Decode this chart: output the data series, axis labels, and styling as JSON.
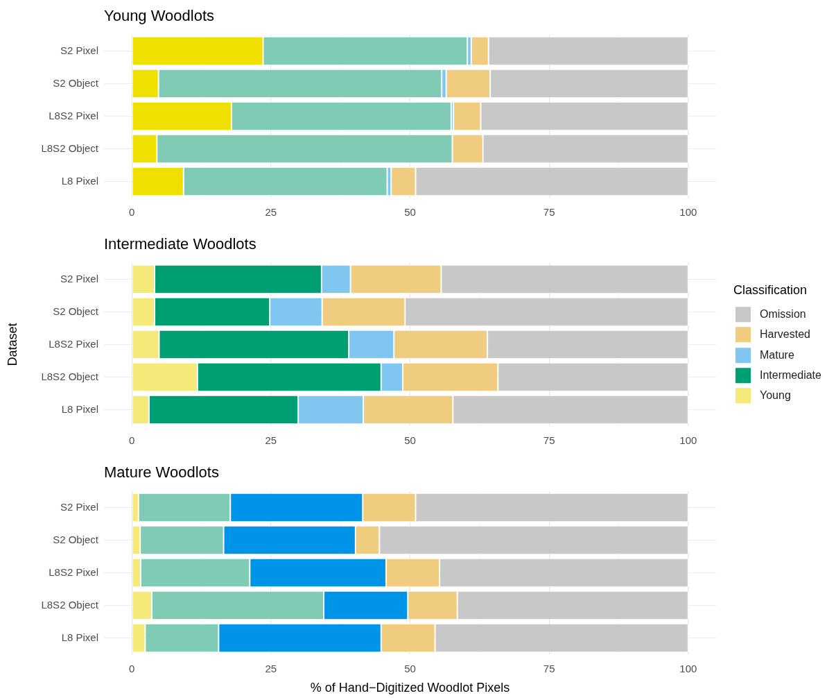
{
  "chart_data": [
    {
      "type": "bar",
      "orientation": "horizontal",
      "stacked": true,
      "title": "Young Woodlots",
      "categories": [
        "S2 Pixel",
        "S2 Object",
        "L8S2 Pixel",
        "L8S2 Object",
        "L8 Pixel"
      ],
      "series": [
        {
          "color": "#f0e000",
          "values": [
            23.6,
            4.8,
            17.9,
            4.5,
            9.3
          ]
        },
        {
          "color": "#7fcbb6",
          "values": [
            36.7,
            50.9,
            39.5,
            53.1,
            36.6
          ]
        },
        {
          "color": "#7fc6f0",
          "values": [
            0.7,
            0.8,
            0.4,
            0,
            0.7
          ]
        },
        {
          "color": "#f0cc7e",
          "values": [
            3.1,
            7.9,
            4.9,
            5.5,
            4.4
          ]
        },
        {
          "color": "#c8c8c8",
          "values": [
            35.9,
            35.6,
            37.3,
            36.9,
            49.0
          ]
        }
      ],
      "xlim": [
        -5,
        105
      ],
      "xticks": [
        0,
        {
          "value": 12.5,
          "label": null
        },
        25,
        {
          "value": 37.5,
          "label": null
        },
        50,
        {
          "value": 62.5,
          "label": null
        },
        75,
        {
          "value": 87.5,
          "label": null
        },
        100
      ],
      "grid": true
    },
    {
      "type": "bar",
      "orientation": "horizontal",
      "stacked": true,
      "title": "Intermediate Woodlots",
      "ylabel": "Dataset",
      "legend": "right",
      "legend_title": "Classification",
      "categories": [
        "S2 Pixel",
        "S2 Object",
        "L8S2 Pixel",
        "L8S2 Object",
        "L8 Pixel"
      ],
      "series": [
        {
          "name": "Young",
          "color": "#f5e97a",
          "values": [
            4.1,
            4.1,
            4.9,
            11.8,
            3.1
          ]
        },
        {
          "name": "Intermediate",
          "color": "#009e73",
          "values": [
            30.0,
            20.7,
            34.1,
            33.0,
            26.8
          ]
        },
        {
          "name": "Mature",
          "color": "#7fc6f0",
          "values": [
            5.2,
            9.4,
            8.1,
            3.9,
            11.7
          ]
        },
        {
          "name": "Harvested",
          "color": "#f0cc7e",
          "values": [
            16.3,
            14.9,
            16.8,
            17.1,
            16.1
          ]
        },
        {
          "name": "Omission",
          "color": "#c8c8c8",
          "values": [
            44.4,
            50.9,
            36.1,
            34.2,
            42.3
          ]
        }
      ],
      "xlim": [
        -5,
        105
      ],
      "xticks": [
        0,
        {
          "value": 12.5,
          "label": null
        },
        25,
        {
          "value": 37.5,
          "label": null
        },
        50,
        {
          "value": 62.5,
          "label": null
        },
        75,
        {
          "value": 87.5,
          "label": null
        },
        100
      ],
      "grid": true
    },
    {
      "type": "bar",
      "orientation": "horizontal",
      "stacked": true,
      "title": "Mature Woodlots",
      "xlabel": "% of Hand−Digitized Woodlot Pixels",
      "categories": [
        "S2 Pixel",
        "S2 Object",
        "L8S2 Pixel",
        "L8S2 Object",
        "L8 Pixel"
      ],
      "series": [
        {
          "color": "#f5e97a",
          "values": [
            1.2,
            1.5,
            1.6,
            3.6,
            2.4
          ]
        },
        {
          "color": "#7fcbb6",
          "values": [
            16.5,
            15.0,
            19.6,
            30.9,
            13.2
          ]
        },
        {
          "color": "#0094e8",
          "values": [
            23.8,
            23.7,
            24.5,
            15.1,
            29.2
          ]
        },
        {
          "color": "#f0cc7e",
          "values": [
            9.5,
            4.3,
            9.6,
            8.9,
            9.7
          ]
        },
        {
          "color": "#c8c8c8",
          "values": [
            49.0,
            55.5,
            44.7,
            41.5,
            45.5
          ]
        }
      ],
      "xlim": [
        -5,
        105
      ],
      "xticks": [
        0,
        {
          "value": 12.5,
          "label": null
        },
        25,
        {
          "value": 37.5,
          "label": null
        },
        50,
        {
          "value": 62.5,
          "label": null
        },
        75,
        {
          "value": 87.5,
          "label": null
        },
        100
      ],
      "grid": true
    }
  ]
}
